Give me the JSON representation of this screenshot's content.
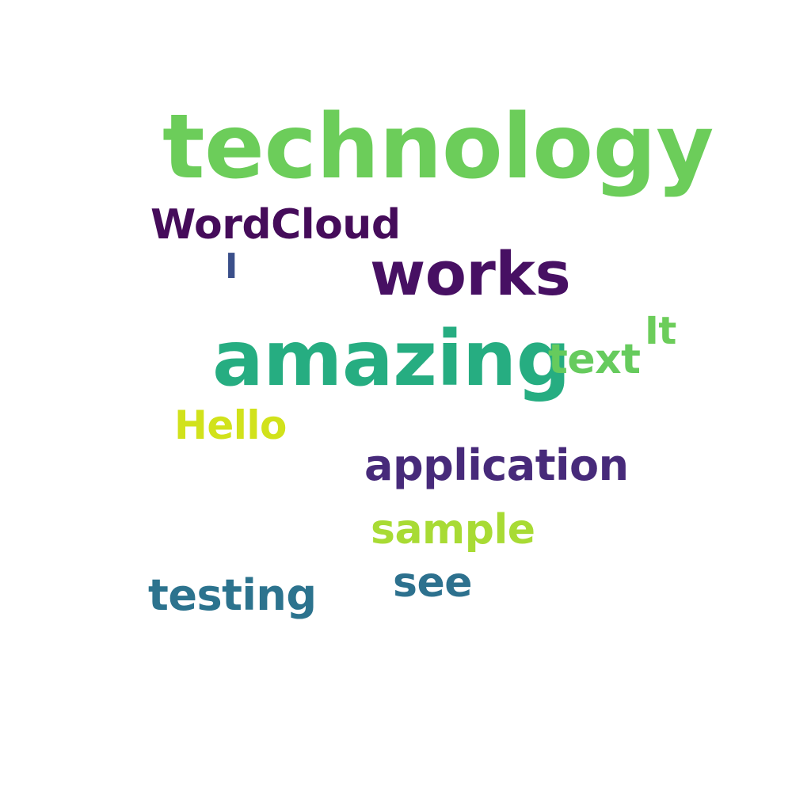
{
  "word_cloud": {
    "words": [
      {
        "id": "technology",
        "text": "technology",
        "color": "#6ccd5a"
      },
      {
        "id": "wordcloud",
        "text": "WordCloud",
        "color": "#450c5a"
      },
      {
        "id": "i",
        "text": "I",
        "color": "#3b4f8a"
      },
      {
        "id": "works",
        "text": "works",
        "color": "#471063"
      },
      {
        "id": "it",
        "text": "It",
        "color": "#6ccd5a"
      },
      {
        "id": "amazing",
        "text": "amazing",
        "color": "#26ad81"
      },
      {
        "id": "text",
        "text": "text",
        "color": "#66cb5d"
      },
      {
        "id": "hello",
        "text": "Hello",
        "color": "#d1e21b"
      },
      {
        "id": "application",
        "text": "application",
        "color": "#472a7a"
      },
      {
        "id": "sample",
        "text": "sample",
        "color": "#a8db34"
      },
      {
        "id": "see",
        "text": "see",
        "color": "#2d718e"
      },
      {
        "id": "testing",
        "text": "testing",
        "color": "#2c738e"
      }
    ]
  }
}
